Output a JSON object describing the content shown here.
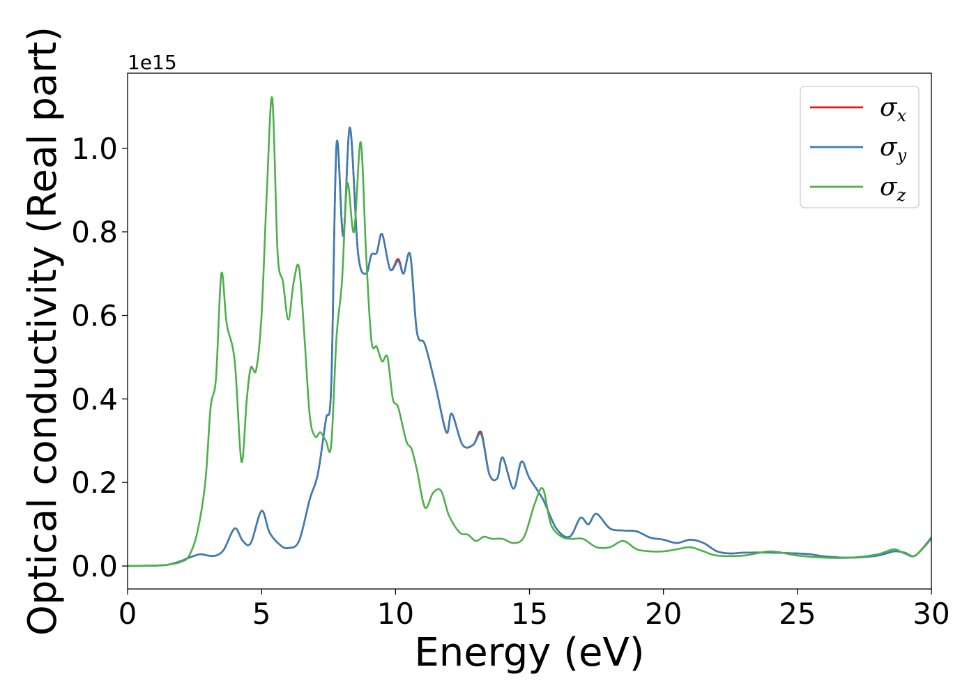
{
  "chart_data": {
    "type": "line",
    "title": "",
    "xlabel": "Energy (eV)",
    "ylabel": "Optical conductivity (Real part)",
    "y_offset_label": "1e15",
    "xlim": [
      0,
      30
    ],
    "ylim": [
      -0.055,
      1.18
    ],
    "x_ticks": [
      0,
      5,
      10,
      15,
      20,
      25,
      30
    ],
    "y_ticks": [
      0.0,
      0.2,
      0.4,
      0.6,
      0.8,
      1.0
    ],
    "x_tick_labels": [
      "0",
      "5",
      "10",
      "15",
      "20",
      "25",
      "30"
    ],
    "y_tick_labels": [
      "0.0",
      "0.2",
      "0.4",
      "0.6",
      "0.8",
      "1.0"
    ],
    "grid": false,
    "legend_position": "top-right",
    "legend": [
      {
        "symbol": "σ",
        "sub": "x",
        "color": "#e41a1c"
      },
      {
        "symbol": "σ",
        "sub": "y",
        "color": "#377eb8"
      },
      {
        "symbol": "σ",
        "sub": "z",
        "color": "#4daf4a"
      }
    ],
    "x_xy": [
      0,
      1,
      1.5,
      2,
      2.3,
      2.7,
      3,
      3.3,
      3.6,
      4,
      4.3,
      4.6,
      5,
      5.3,
      5.7,
      6,
      6.4,
      6.8,
      7.1,
      7.4,
      7.6,
      7.8,
      8.05,
      8.3,
      8.6,
      8.9,
      9.1,
      9.3,
      9.5,
      9.8,
      10.1,
      10.3,
      10.55,
      10.8,
      11.1,
      11.5,
      11.9,
      12.1,
      12.5,
      12.9,
      13.2,
      13.5,
      13.8,
      14.0,
      14.4,
      14.7,
      15.0,
      15.5,
      16.0,
      16.5,
      16.9,
      17.2,
      17.5,
      18.0,
      18.5,
      19.0,
      19.5,
      20.0,
      20.5,
      21.0,
      21.5,
      22.0,
      22.5,
      23.0,
      24.0,
      25.0,
      25.5,
      26.0,
      27.0,
      28.0,
      28.6,
      29.0,
      29.4,
      30.0
    ],
    "series": [
      {
        "name": "σx",
        "color": "#e41a1c",
        "values": [
          0,
          0.001,
          0.003,
          0.012,
          0.02,
          0.028,
          0.025,
          0.025,
          0.04,
          0.09,
          0.06,
          0.055,
          0.132,
          0.08,
          0.05,
          0.043,
          0.06,
          0.16,
          0.22,
          0.35,
          0.43,
          1.01,
          0.79,
          1.05,
          0.75,
          0.7,
          0.745,
          0.75,
          0.795,
          0.71,
          0.735,
          0.7,
          0.745,
          0.56,
          0.53,
          0.43,
          0.32,
          0.365,
          0.29,
          0.29,
          0.32,
          0.22,
          0.21,
          0.26,
          0.185,
          0.25,
          0.21,
          0.16,
          0.09,
          0.07,
          0.115,
          0.1,
          0.125,
          0.09,
          0.085,
          0.083,
          0.068,
          0.063,
          0.055,
          0.063,
          0.055,
          0.035,
          0.03,
          0.032,
          0.032,
          0.03,
          0.028,
          0.023,
          0.02,
          0.025,
          0.035,
          0.032,
          0.025,
          0.068
        ]
      },
      {
        "name": "σy",
        "color": "#377eb8",
        "values": [
          0,
          0.001,
          0.003,
          0.012,
          0.02,
          0.028,
          0.025,
          0.025,
          0.04,
          0.09,
          0.06,
          0.055,
          0.132,
          0.08,
          0.05,
          0.043,
          0.06,
          0.16,
          0.22,
          0.35,
          0.43,
          1.01,
          0.79,
          1.05,
          0.75,
          0.7,
          0.745,
          0.75,
          0.795,
          0.71,
          0.73,
          0.7,
          0.745,
          0.56,
          0.53,
          0.43,
          0.32,
          0.365,
          0.29,
          0.29,
          0.315,
          0.22,
          0.21,
          0.26,
          0.185,
          0.25,
          0.21,
          0.16,
          0.09,
          0.07,
          0.115,
          0.1,
          0.125,
          0.09,
          0.085,
          0.083,
          0.068,
          0.063,
          0.055,
          0.063,
          0.055,
          0.035,
          0.03,
          0.032,
          0.032,
          0.03,
          0.028,
          0.023,
          0.02,
          0.025,
          0.035,
          0.032,
          0.025,
          0.068
        ]
      },
      {
        "name": "σz",
        "color": "#4daf4a",
        "x": [
          0,
          1,
          1.5,
          2,
          2.3,
          2.6,
          2.9,
          3.1,
          3.3,
          3.5,
          3.7,
          4.0,
          4.25,
          4.45,
          4.6,
          4.8,
          5.0,
          5.2,
          5.4,
          5.6,
          5.8,
          6.0,
          6.2,
          6.4,
          6.6,
          6.8,
          7.0,
          7.2,
          7.4,
          7.6,
          7.8,
          8.0,
          8.2,
          8.45,
          8.7,
          8.9,
          9.1,
          9.3,
          9.5,
          9.7,
          9.9,
          10.1,
          10.4,
          10.6,
          10.8,
          11.1,
          11.4,
          11.7,
          12.0,
          12.4,
          12.7,
          13.0,
          13.3,
          13.6,
          14.0,
          14.4,
          14.8,
          15.2,
          15.5,
          15.8,
          16.2,
          16.6,
          17.0,
          17.5,
          18.0,
          18.5,
          19.0,
          19.5,
          20.0,
          20.5,
          21.0,
          21.5,
          22.0,
          23.0,
          24.0,
          25.0,
          26.0,
          27.0,
          28.0,
          28.6,
          29.0,
          29.4,
          30.0
        ],
        "values": [
          0,
          0.001,
          0.003,
          0.01,
          0.025,
          0.08,
          0.2,
          0.38,
          0.45,
          0.7,
          0.58,
          0.49,
          0.25,
          0.4,
          0.475,
          0.47,
          0.6,
          0.9,
          1.12,
          0.75,
          0.68,
          0.59,
          0.68,
          0.715,
          0.55,
          0.36,
          0.31,
          0.32,
          0.3,
          0.29,
          0.55,
          0.68,
          0.915,
          0.8,
          1.015,
          0.75,
          0.54,
          0.525,
          0.49,
          0.5,
          0.4,
          0.38,
          0.3,
          0.28,
          0.23,
          0.14,
          0.175,
          0.18,
          0.12,
          0.08,
          0.075,
          0.06,
          0.07,
          0.065,
          0.065,
          0.055,
          0.07,
          0.15,
          0.185,
          0.1,
          0.07,
          0.065,
          0.065,
          0.045,
          0.045,
          0.06,
          0.04,
          0.035,
          0.035,
          0.04,
          0.045,
          0.035,
          0.025,
          0.025,
          0.035,
          0.025,
          0.02,
          0.02,
          0.028,
          0.04,
          0.03,
          0.025,
          0.065
        ]
      }
    ]
  }
}
